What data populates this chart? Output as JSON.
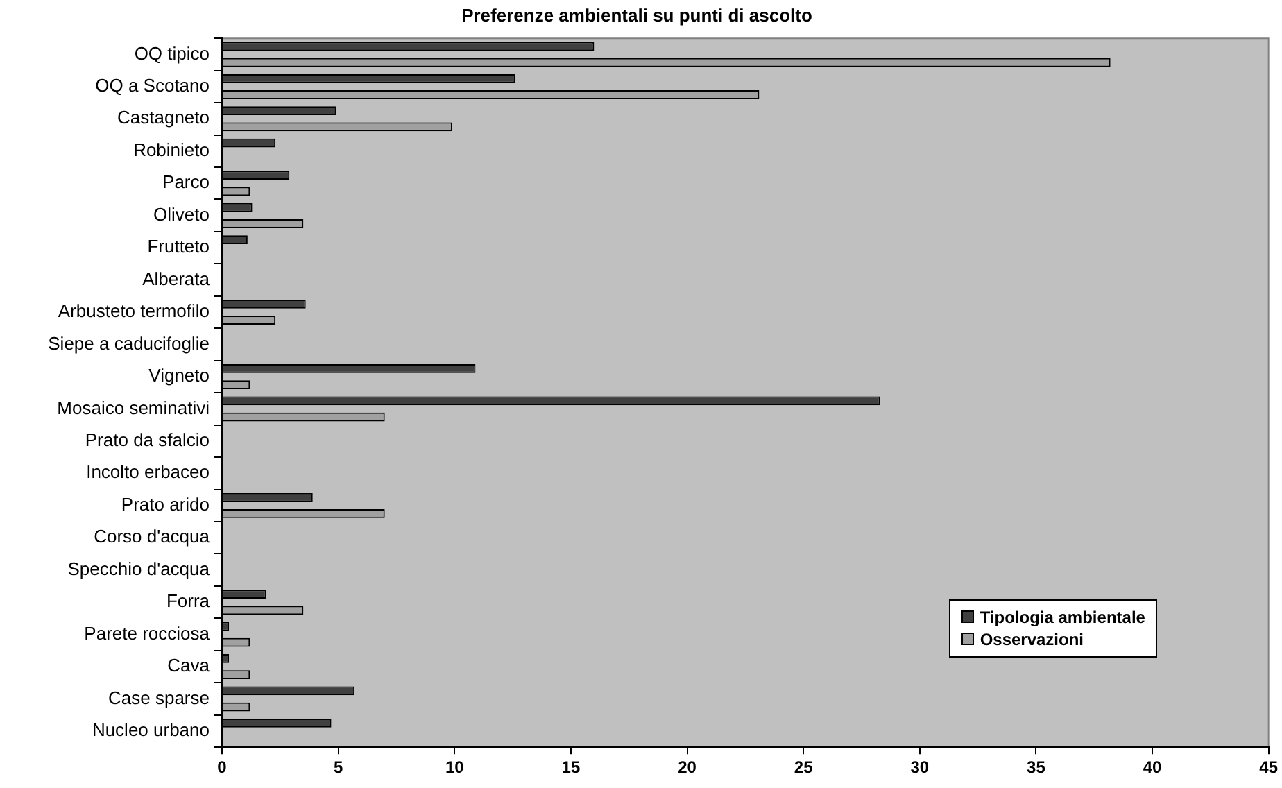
{
  "chart_data": {
    "type": "bar",
    "orientation": "horizontal",
    "title": "Preferenze ambientali su punti di ascolto",
    "categories": [
      "OQ tipico",
      "OQ a Scotano",
      "Castagneto",
      "Robinieto",
      "Parco",
      "Oliveto",
      "Frutteto",
      "Alberata",
      "Arbusteto termofilo",
      "Siepe a caducifoglie",
      "Vigneto",
      "Mosaico seminativi",
      "Prato da sfalcio",
      "Incolto erbaceo",
      "Prato arido",
      "Corso d'acqua",
      "Specchio d'acqua",
      "Forra",
      "Parete rocciosa",
      "Cava",
      "Case sparse",
      "Nucleo urbano"
    ],
    "series": [
      {
        "name": "Tipologia ambientale",
        "color": "#404040",
        "values": [
          16.0,
          12.6,
          4.9,
          2.3,
          2.9,
          1.3,
          1.1,
          0,
          3.6,
          0,
          10.9,
          28.3,
          0,
          0,
          3.9,
          0,
          0,
          1.9,
          0.3,
          0.3,
          5.7,
          4.7
        ]
      },
      {
        "name": "Osservazioni",
        "color": "#a0a0a0",
        "values": [
          38.2,
          23.1,
          9.9,
          0,
          1.2,
          3.5,
          0,
          0,
          2.3,
          0,
          1.2,
          7.0,
          0,
          0,
          7.0,
          0,
          0,
          3.5,
          1.2,
          1.2,
          1.2,
          0
        ]
      }
    ],
    "xlim": [
      0,
      45
    ],
    "xticks": [
      0,
      5,
      10,
      15,
      20,
      25,
      30,
      35,
      40,
      45
    ],
    "grid": false,
    "legend": "bottom right"
  }
}
